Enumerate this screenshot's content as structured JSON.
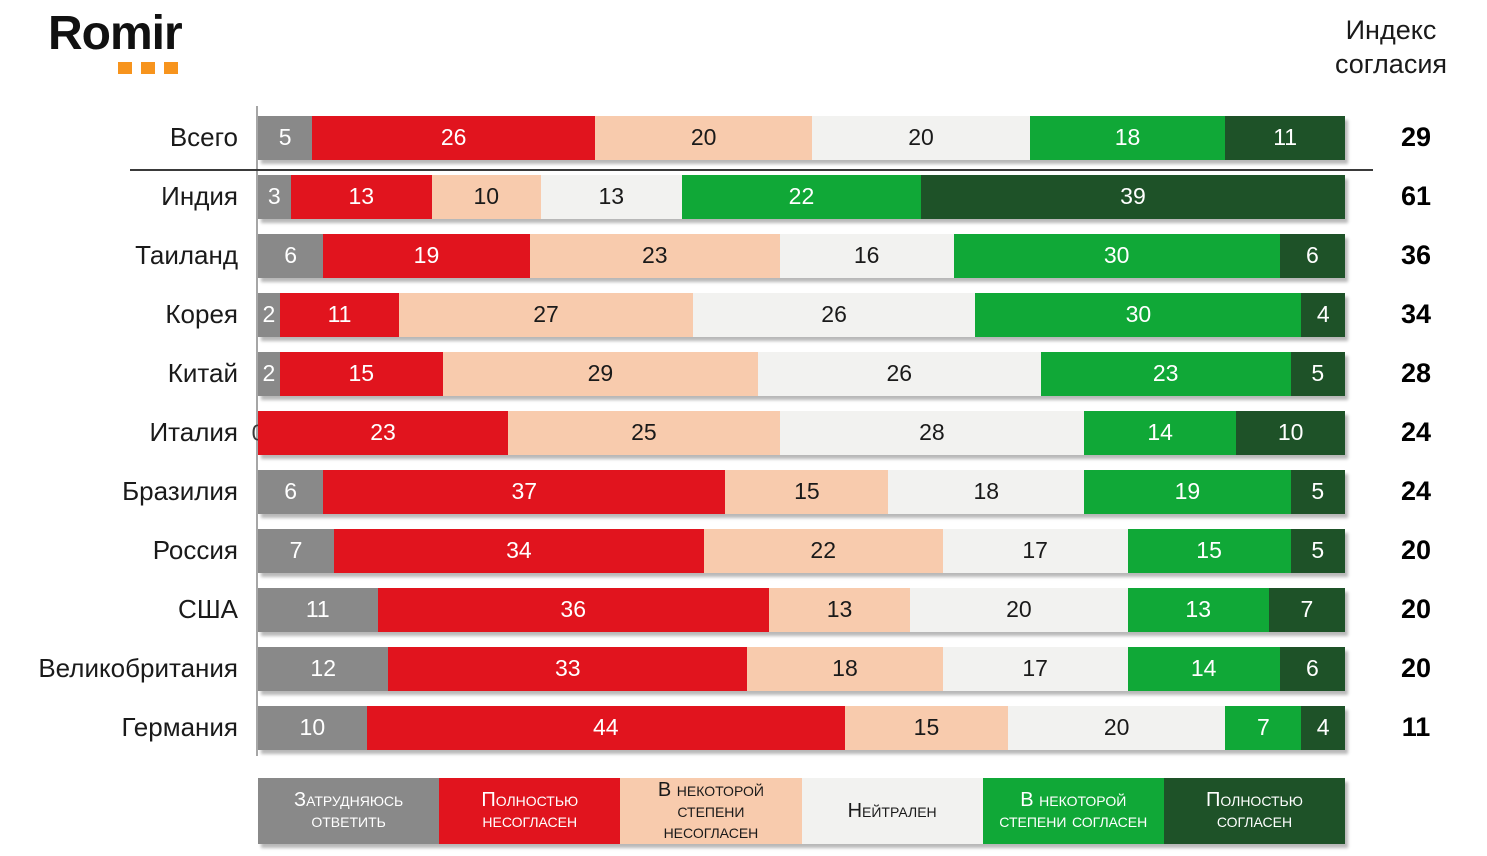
{
  "brand": {
    "logo_text": "Romir",
    "dots_color": "#F7941D"
  },
  "header": {
    "index_title": "Индекс согласия"
  },
  "chart_data": {
    "type": "bar",
    "stacked": true,
    "orientation": "horizontal",
    "unit": "percent",
    "xlim": [
      0,
      100
    ],
    "grid": false,
    "legend_position": "bottom",
    "index_column_title": "Индекс согласия",
    "series_labels": [
      "Затрудняюсь ответить",
      "Полностью несогласен",
      "В некоторой степени несогласен",
      "Нейтрален",
      "В некоторой степени согласен",
      "Полностью согласен"
    ],
    "series_colors": [
      "#898989",
      "#E1141E",
      "#F8CBAD",
      "#F2F2F0",
      "#10A837",
      "#1E5228"
    ],
    "series_text_colors": [
      "#FFFFFF",
      "#FFFFFF",
      "#1A1A1A",
      "#1A1A1A",
      "#FFFFFF",
      "#FFFFFF"
    ],
    "rows": [
      {
        "label": "Всего",
        "values": [
          5,
          26,
          20,
          20,
          18,
          11
        ],
        "index": 29,
        "separator_after": true
      },
      {
        "label": "Индия",
        "values": [
          3,
          13,
          10,
          13,
          22,
          39
        ],
        "index": 61
      },
      {
        "label": "Таиланд",
        "values": [
          6,
          19,
          23,
          16,
          30,
          6
        ],
        "index": 36
      },
      {
        "label": "Корея",
        "values": [
          2,
          11,
          27,
          26,
          30,
          4
        ],
        "index": 34
      },
      {
        "label": "Китай",
        "values": [
          2,
          15,
          29,
          26,
          23,
          5
        ],
        "index": 28
      },
      {
        "label": "Италия",
        "values": [
          0,
          23,
          25,
          28,
          14,
          10
        ],
        "index": 24
      },
      {
        "label": "Бразилия",
        "values": [
          6,
          37,
          15,
          18,
          19,
          5
        ],
        "index": 24
      },
      {
        "label": "Россия",
        "values": [
          7,
          34,
          22,
          17,
          15,
          5
        ],
        "index": 20
      },
      {
        "label": "США",
        "values": [
          11,
          36,
          13,
          20,
          13,
          7
        ],
        "index": 20
      },
      {
        "label": "Великобритания",
        "values": [
          12,
          33,
          18,
          17,
          14,
          6
        ],
        "index": 20
      },
      {
        "label": "Германия",
        "values": [
          10,
          44,
          15,
          20,
          7,
          4
        ],
        "index": 11
      }
    ]
  }
}
